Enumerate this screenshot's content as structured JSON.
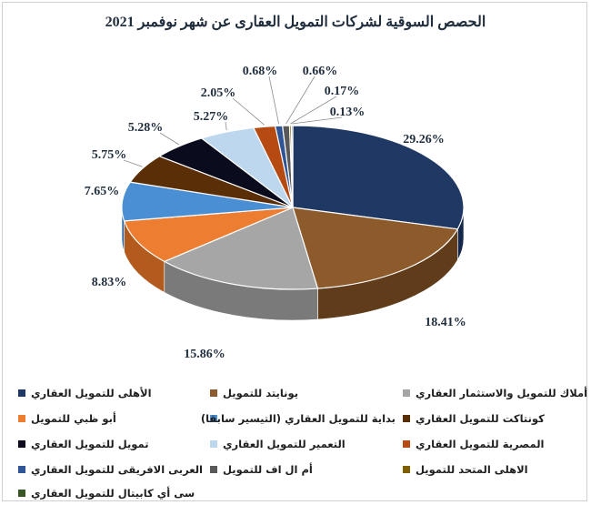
{
  "chart_data": {
    "type": "pie",
    "title": "الحصص السوقية لشركات التمويل العقارى عن شهر نوفمبر 2021",
    "slices": [
      {
        "label": "الأهلى للتمويل العقاري",
        "value": 29.26,
        "display": "29.26%",
        "color": "#1f3864",
        "side": "#15274a"
      },
      {
        "label": "يونايتد للتمويل",
        "value": 18.41,
        "display": "18.41%",
        "color": "#8c5a2b",
        "side": "#603c1b"
      },
      {
        "label": "أملاك للتمويل والاستثمار العقاري",
        "value": 15.86,
        "display": "15.86%",
        "color": "#a6a6a6",
        "side": "#7a7a7a"
      },
      {
        "label": "أبو ظبي للتمويل",
        "value": 8.83,
        "display": "8.83%",
        "color": "#ed7d31",
        "side": "#b35a1e"
      },
      {
        "label": "بداية للتمويل العقاري (التيسير سابقا)",
        "value": 7.65,
        "display": "7.65%",
        "color": "#4a8fd4",
        "side": "#2f6aa6"
      },
      {
        "label": "كونتاكت للتمويل العقاري",
        "value": 5.75,
        "display": "5.75%",
        "color": "#5a2e06",
        "side": "#3d1f04"
      },
      {
        "label": "تمويل للتمويل العقاري",
        "value": 5.28,
        "display": "5.28%",
        "color": "#0b0b1e",
        "side": "#05050f"
      },
      {
        "label": "التعمير للتمويل العقاري",
        "value": 5.27,
        "display": "5.27%",
        "color": "#bdd7ee",
        "side": "#8fb1cf"
      },
      {
        "label": "المصرية للتمويل العقاري",
        "value": 2.05,
        "display": "2.05%",
        "color": "#b54b12",
        "side": "#83350c"
      },
      {
        "label": "العربى الافريقى للتمويل العقاري",
        "value": 0.68,
        "display": "0.68%",
        "color": "#2f5597",
        "side": "#1e3a6a"
      },
      {
        "label": "أم ال اف للتمويل",
        "value": 0.66,
        "display": "0.66%",
        "color": "#595959",
        "side": "#3b3b3b"
      },
      {
        "label": "الاهلى المتحد للتمويل",
        "value": 0.17,
        "display": "0.17%",
        "color": "#7f6000",
        "side": "#574200"
      },
      {
        "label": "سى أي كابيتال للتمويل العقاري",
        "value": 0.13,
        "display": "0.13%",
        "color": "#375623",
        "side": "#243a17"
      }
    ],
    "legend_position": "bottom",
    "style": "3d-pie"
  }
}
